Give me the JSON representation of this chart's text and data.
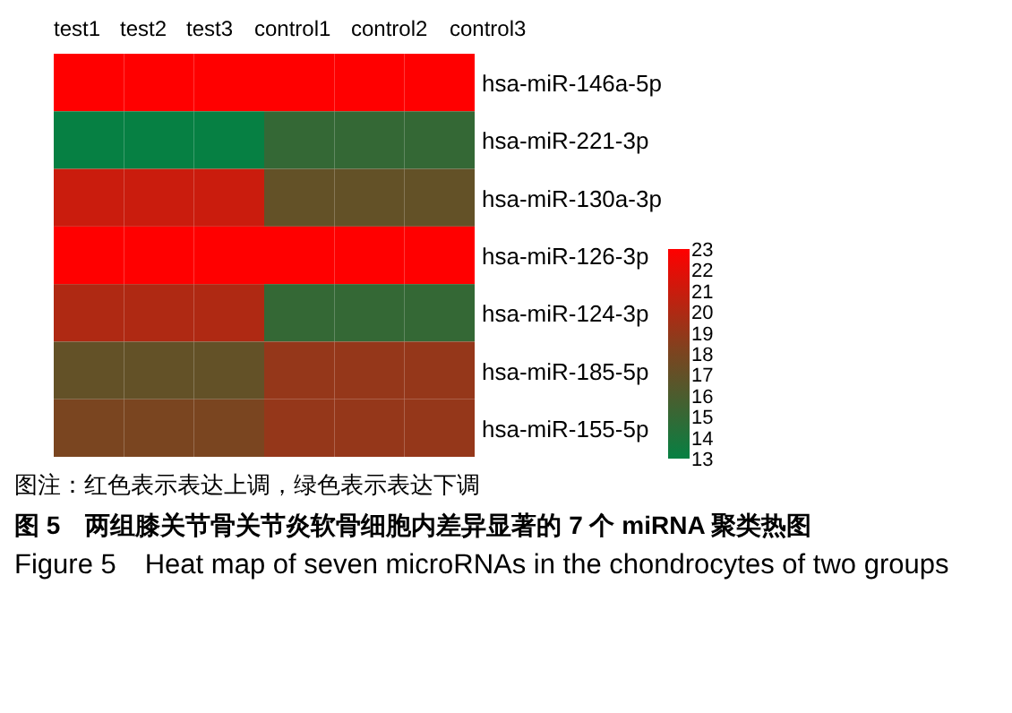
{
  "chart_data": {
    "type": "heatmap",
    "title": "图 5　两组膝关节骨关节炎软骨细胞内差异显著的 7 个 miRNA 聚类热图",
    "subtitle": "Figure 5　Heat map of seven microRNAs in the chondrocytes of two groups",
    "annotations": [
      "图注：红色表示表达上调，绿色表示表达下调"
    ],
    "categories": [
      "test1",
      "test2",
      "test3",
      "control1",
      "control2",
      "control3"
    ],
    "y_categories": [
      "hsa-miR-146a-5p",
      "hsa-miR-221-3p",
      "hsa-miR-130a-3p",
      "hsa-miR-126-3p",
      "hsa-miR-124-3p",
      "hsa-miR-185-5p",
      "hsa-miR-155-5p"
    ],
    "cells": [
      [
        23,
        23,
        23,
        23,
        23,
        23
      ],
      [
        13,
        13,
        13,
        15,
        15,
        15
      ],
      [
        21,
        21,
        21,
        17,
        17,
        17
      ],
      [
        23,
        23,
        23,
        23,
        23,
        23
      ],
      [
        20,
        20,
        20,
        15,
        15,
        15
      ],
      [
        17,
        17,
        17,
        19,
        19,
        19
      ],
      [
        18,
        18,
        18,
        19,
        19,
        19
      ]
    ],
    "clim": [
      13,
      23
    ],
    "cticks": [
      13,
      14,
      15,
      16,
      17,
      18,
      19,
      20,
      21,
      22,
      23
    ]
  }
}
